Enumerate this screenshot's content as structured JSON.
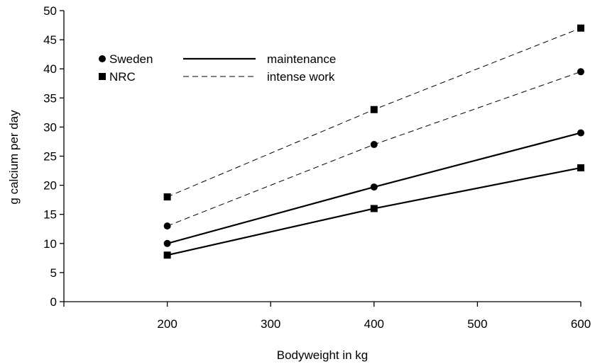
{
  "chart_data": {
    "type": "line",
    "title": "",
    "xlabel": "Bodyweight in kg",
    "ylabel": "g calcium per day",
    "xlim": [
      100,
      600
    ],
    "ylim": [
      0,
      50
    ],
    "x_ticks": [
      200,
      300,
      400,
      500,
      600
    ],
    "y_ticks": [
      0,
      5,
      10,
      15,
      20,
      25,
      30,
      35,
      40,
      45,
      50
    ],
    "grid": false,
    "legend": {
      "placement": "top-left",
      "markers": [
        {
          "label": "Sweden",
          "shape": "circle"
        },
        {
          "label": "NRC",
          "shape": "square"
        }
      ],
      "lines": [
        {
          "label": "maintenance",
          "style": "solid"
        },
        {
          "label": "intense work",
          "style": "dashed"
        }
      ]
    },
    "series": [
      {
        "source": "Sweden",
        "condition": "maintenance",
        "marker": "circle",
        "line": "solid",
        "x": [
          200,
          400,
          600
        ],
        "y": [
          10,
          19.7,
          29
        ]
      },
      {
        "source": "NRC",
        "condition": "maintenance",
        "marker": "square",
        "line": "solid",
        "x": [
          200,
          400,
          600
        ],
        "y": [
          8,
          16,
          23
        ]
      },
      {
        "source": "Sweden",
        "condition": "intense work",
        "marker": "circle",
        "line": "dashed",
        "x": [
          200,
          400,
          600
        ],
        "y": [
          13,
          27,
          39.5
        ]
      },
      {
        "source": "NRC",
        "condition": "intense work",
        "marker": "square",
        "line": "dashed",
        "x": [
          200,
          400,
          600
        ],
        "y": [
          18,
          33,
          47
        ]
      }
    ],
    "colors": {
      "ink": "#000000",
      "background": "#ffffff"
    }
  }
}
